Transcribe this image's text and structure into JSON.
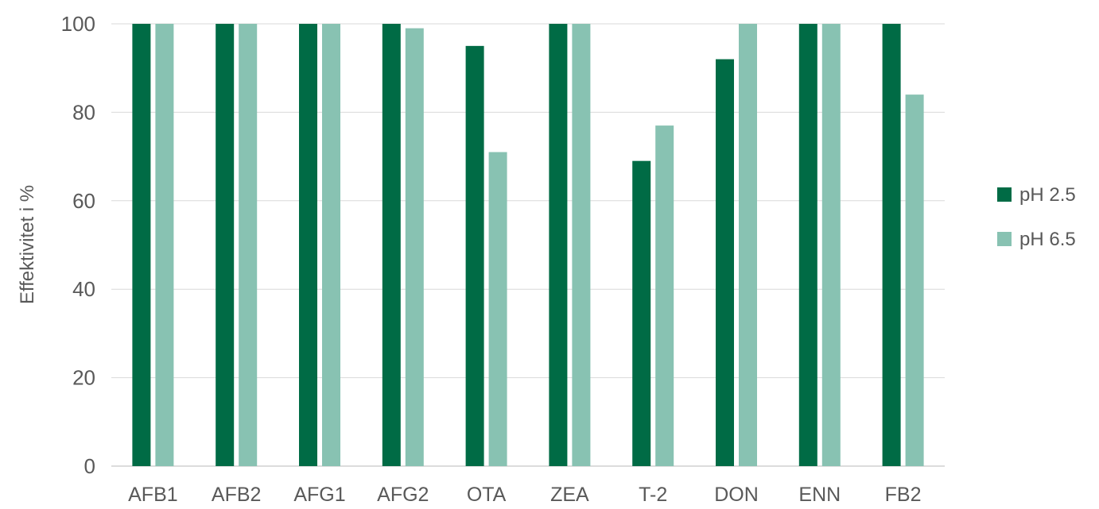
{
  "chart_data": {
    "type": "bar",
    "title": "",
    "xlabel": "",
    "ylabel": "Effektivitet i %",
    "ylim": [
      0,
      100
    ],
    "yticks": [
      0,
      20,
      40,
      60,
      80,
      100
    ],
    "grid": true,
    "legend_position": "right",
    "categories": [
      "AFB1",
      "AFB2",
      "AFG1",
      "AFG2",
      "OTA",
      "ZEA",
      "T-2",
      "DON",
      "ENN",
      "FB2"
    ],
    "series": [
      {
        "name": "pH 2.5",
        "color": "#006b45",
        "values": [
          100,
          100,
          100,
          100,
          95,
          100,
          69,
          92,
          100,
          100
        ]
      },
      {
        "name": "pH 6.5",
        "color": "#88c2b2",
        "values": [
          100,
          100,
          100,
          99,
          71,
          100,
          77,
          100,
          100,
          84
        ]
      }
    ]
  }
}
